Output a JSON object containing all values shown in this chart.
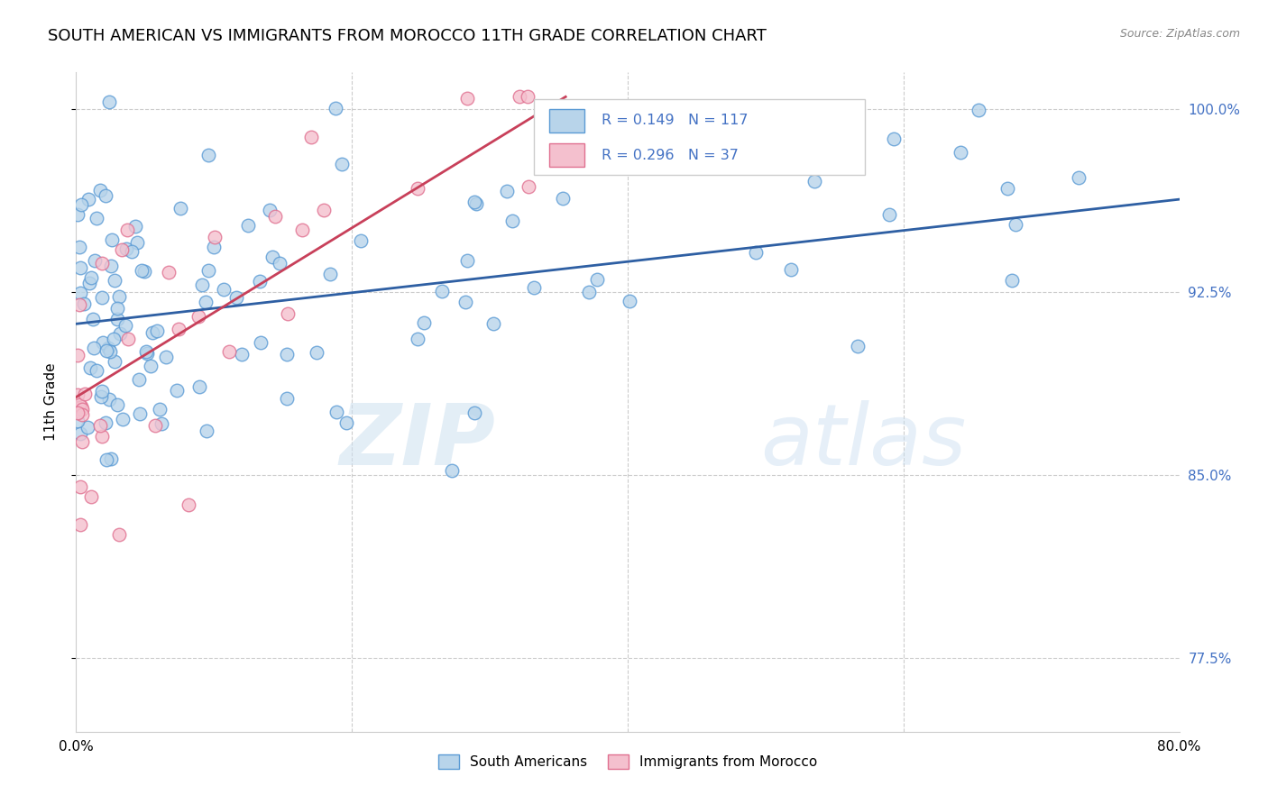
{
  "title": "SOUTH AMERICAN VS IMMIGRANTS FROM MOROCCO 11TH GRADE CORRELATION CHART",
  "source": "Source: ZipAtlas.com",
  "ylabel": "11th Grade",
  "x_min": 0.0,
  "x_max": 0.8,
  "y_min": 0.745,
  "y_max": 1.015,
  "x_ticks": [
    0.0,
    0.2,
    0.4,
    0.6,
    0.8
  ],
  "x_tick_labels": [
    "0.0%",
    "",
    "",
    "",
    "80.0%"
  ],
  "y_ticks": [
    0.775,
    0.85,
    0.925,
    1.0
  ],
  "y_tick_labels": [
    "77.5%",
    "85.0%",
    "92.5%",
    "100.0%"
  ],
  "r_blue": 0.149,
  "n_blue": 117,
  "r_pink": 0.296,
  "n_pink": 37,
  "blue_color": "#b8d4ea",
  "blue_edge": "#5b9bd5",
  "pink_color": "#f4c0ce",
  "pink_edge": "#e07090",
  "blue_line_color": "#2e5fa3",
  "pink_line_color": "#c8405a",
  "watermark_zip": "ZIP",
  "watermark_atlas": "atlas",
  "legend_label_blue": "South Americans",
  "legend_label_pink": "Immigrants from Morocco",
  "title_fontsize": 13,
  "axis_label_fontsize": 11,
  "tick_fontsize": 11,
  "right_tick_color": "#4472c4",
  "grid_color": "#cccccc",
  "blue_line_x0": 0.0,
  "blue_line_y0": 0.912,
  "blue_line_x1": 0.8,
  "blue_line_y1": 0.963,
  "pink_line_x0": 0.0,
  "pink_line_y0": 0.882,
  "pink_line_x1": 0.355,
  "pink_line_y1": 1.005
}
